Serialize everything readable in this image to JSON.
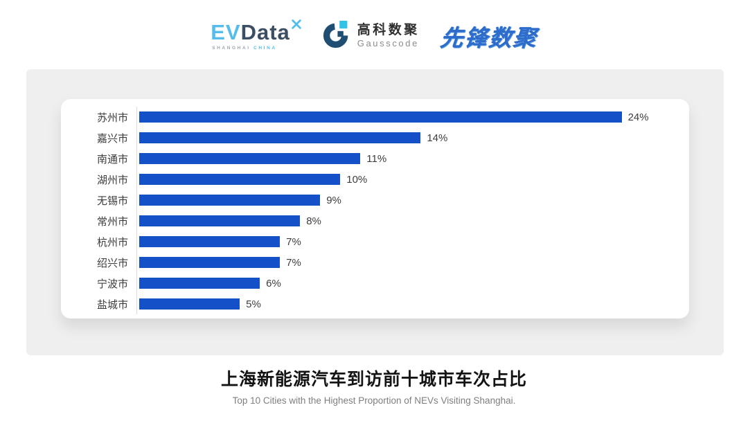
{
  "header": {
    "evdata": {
      "ev": "EV",
      "data": "Data",
      "sub_left": "SHANGHAI",
      "sub_right": "CHINA"
    },
    "gausscode": {
      "cn": "高科数聚",
      "en": "Gausscode"
    },
    "xianfeng": {
      "text": "先锋数聚"
    }
  },
  "chart_data": {
    "type": "bar",
    "orientation": "horizontal",
    "categories": [
      "苏州市",
      "嘉兴市",
      "南通市",
      "湖州市",
      "无锡市",
      "常州市",
      "杭州市",
      "绍兴市",
      "宁波市",
      "盐城市"
    ],
    "values": [
      24,
      14,
      11,
      10,
      9,
      8,
      7,
      7,
      6,
      5
    ],
    "value_suffix": "%",
    "title": "上海新能源汽车到访前十城市车次占比",
    "subtitle": "Top 10 Cities with the Highest Proportion of  NEVs Visiting Shanghai.",
    "xlim": [
      0,
      26.7
    ],
    "grid": false,
    "legend": false,
    "bar_color": "#1450C8",
    "axis_color": "#DBDBDB",
    "label_color": "#3C3C3C"
  }
}
